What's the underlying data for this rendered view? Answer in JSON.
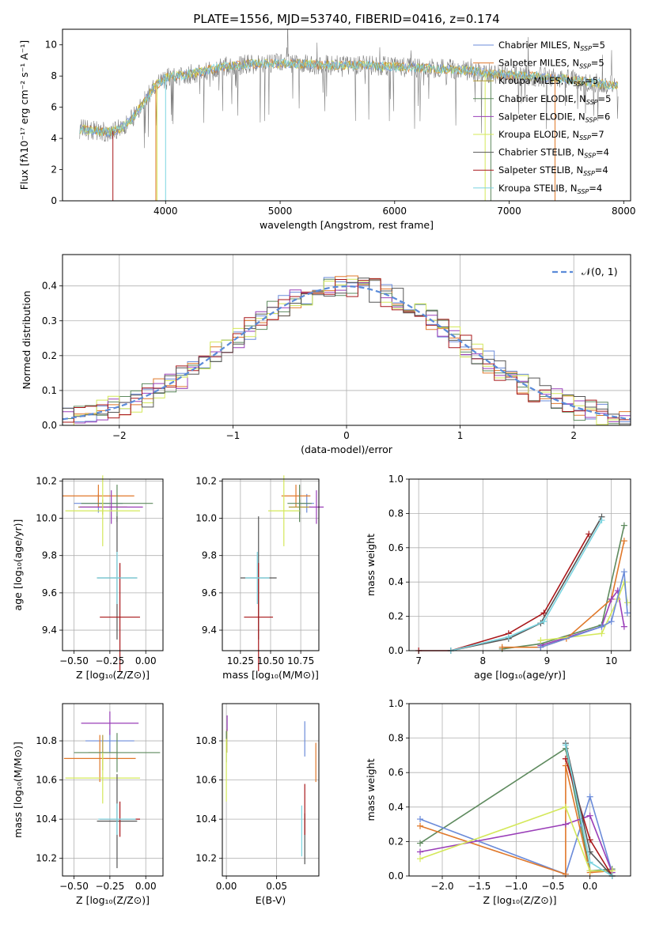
{
  "title": "PLATE=1556, MJD=53740, FIBERID=0416, z=0.174",
  "colors": [
    "#6b8bd9",
    "#e0782a",
    "#b09a3a",
    "#5e8a5e",
    "#9a3fb8",
    "#d4e85a",
    "#555555",
    "#a8171a",
    "#7ad4e0"
  ],
  "legend_items": [
    {
      "label": "Chabrier MILES, N",
      "sub": "SSP",
      "tail": "=5"
    },
    {
      "label": "Salpeter MILES, N",
      "sub": "SSP",
      "tail": "=5"
    },
    {
      "label": "Kroupa MILES, N",
      "sub": "SSP",
      "tail": "=5"
    },
    {
      "label": "Chabrier ELODIE, N",
      "sub": "SSP",
      "tail": "=5"
    },
    {
      "label": "Salpeter ELODIE, N",
      "sub": "SSP",
      "tail": "=6"
    },
    {
      "label": "Kroupa ELODIE, N",
      "sub": "SSP",
      "tail": "=7"
    },
    {
      "label": "Chabrier STELIB, N",
      "sub": "SSP",
      "tail": "=4"
    },
    {
      "label": "Salpeter STELIB, N",
      "sub": "SSP",
      "tail": "=4"
    },
    {
      "label": "Kroupa STELIB, N",
      "sub": "SSP",
      "tail": "=4"
    }
  ],
  "hist_legend": "𝒩(0, 1)",
  "chart_data": [
    {
      "type": "line",
      "name": "spectrum",
      "xlabel": "wavelength [Angstrom, rest frame]",
      "ylabel": "Flux [fλ10⁻¹⁷ erg cm⁻² s⁻¹ A⁻¹]",
      "xlim": [
        3100,
        8060
      ],
      "ylim": [
        0,
        11
      ],
      "xticks": [
        4000,
        5000,
        6000,
        7000,
        8000
      ],
      "yticks": [
        0,
        2,
        4,
        6,
        8,
        10
      ],
      "continuum": [
        [
          3250,
          4.6
        ],
        [
          3500,
          4.4
        ],
        [
          3600,
          4.6
        ],
        [
          3700,
          5.2
        ],
        [
          3800,
          6.2
        ],
        [
          3900,
          7.3
        ],
        [
          4000,
          7.9
        ],
        [
          4200,
          8.1
        ],
        [
          4500,
          8.6
        ],
        [
          4800,
          8.8
        ],
        [
          5100,
          8.8
        ],
        [
          5400,
          8.7
        ],
        [
          5700,
          8.7
        ],
        [
          6000,
          8.6
        ],
        [
          6300,
          8.5
        ],
        [
          6600,
          8.4
        ],
        [
          6900,
          8.1
        ],
        [
          7200,
          8.0
        ],
        [
          7500,
          7.8
        ],
        [
          7800,
          7.5
        ],
        [
          7950,
          7.4
        ]
      ]
    },
    {
      "type": "bar",
      "name": "residual-histogram",
      "xlabel": "(data-model)/error",
      "ylabel": "Normed distribution",
      "xlim": [
        -2.5,
        2.5
      ],
      "ylim": [
        0,
        0.49
      ],
      "xticks": [
        -2,
        -1,
        0,
        1,
        2
      ],
      "yticks": [
        0,
        0.1,
        0.2,
        0.3,
        0.4
      ],
      "gaussian": {
        "mu": 0,
        "sigma": 1
      }
    },
    {
      "type": "scatter",
      "name": "age-vs-Z",
      "xlabel": "Z [log₁₀(Z/Z⊙)]",
      "ylabel": "age  [log₁₀(age/yr)]",
      "xlim": [
        -0.58,
        0.12
      ],
      "ylim": [
        9.29,
        10.21
      ],
      "xticks": [
        -0.5,
        -0.25,
        0.0
      ],
      "xticklabels": [
        "−0.50",
        "−0.25",
        "0.00"
      ],
      "yticks": [
        9.4,
        9.6,
        9.8,
        10.0,
        10.2
      ],
      "yticklabels": [
        "9.4",
        "9.6",
        "9.8",
        "10.0",
        "10.2"
      ],
      "points": [
        {
          "x": -0.33,
          "y": 10.08,
          "xe": 0.17,
          "ye": 0.05,
          "c": 0
        },
        {
          "x": -0.33,
          "y": 10.12,
          "xe": 0.25,
          "ye": 0.06,
          "c": 1
        },
        {
          "x": -0.3,
          "y": 10.06,
          "xe": 0.17,
          "ye": 0.04,
          "c": 2
        },
        {
          "x": -0.2,
          "y": 10.08,
          "xe": 0.25,
          "ye": 0.1,
          "c": 3
        },
        {
          "x": -0.24,
          "y": 10.06,
          "xe": 0.22,
          "ye": 0.09,
          "c": 4
        },
        {
          "x": -0.3,
          "y": 10.04,
          "xe": 0.26,
          "ye": 0.19,
          "c": 5
        },
        {
          "x": -0.2,
          "y": 9.68,
          "xe": 0.14,
          "ye": 0.33,
          "c": 6
        },
        {
          "x": -0.18,
          "y": 9.47,
          "xe": 0.14,
          "ye": 0.29,
          "c": 7
        },
        {
          "x": -0.2,
          "y": 9.68,
          "xe": 0.14,
          "ye": 0.14,
          "c": 8
        },
        {
          "x": -0.2,
          "y": 10.11,
          "xe": 0.2,
          "ye": 0.03,
          "c": 9
        }
      ]
    },
    {
      "type": "scatter",
      "name": "age-vs-mass",
      "xlabel": "mass [log₁₀(M/M⊙)]",
      "ylabel": "",
      "xlim": [
        10.1,
        10.9
      ],
      "ylim": [
        9.29,
        10.21
      ],
      "xticks": [
        10.25,
        10.5,
        10.75
      ],
      "xticklabels": [
        "10.25",
        "10.50",
        "10.75"
      ],
      "yticks": [
        9.4,
        9.6,
        9.8,
        10.0,
        10.2
      ],
      "yticklabels": [
        "9.4",
        "9.6",
        "9.8",
        "10.0",
        "10.2"
      ],
      "points": [
        {
          "x": 10.8,
          "y": 10.08,
          "xe": 0.06,
          "ye": 0.05,
          "c": 0
        },
        {
          "x": 10.71,
          "y": 10.12,
          "xe": 0.12,
          "ye": 0.06,
          "c": 1
        },
        {
          "x": 10.74,
          "y": 10.06,
          "xe": 0.09,
          "ye": 0.04,
          "c": 2
        },
        {
          "x": 10.74,
          "y": 10.08,
          "xe": 0.1,
          "ye": 0.1,
          "c": 3
        },
        {
          "x": 10.88,
          "y": 10.06,
          "xe": 0.06,
          "ye": 0.09,
          "c": 4
        },
        {
          "x": 10.61,
          "y": 10.04,
          "xe": 0.13,
          "ye": 0.19,
          "c": 5
        },
        {
          "x": 10.4,
          "y": 9.68,
          "xe": 0.15,
          "ye": 0.33,
          "c": 6
        },
        {
          "x": 10.4,
          "y": 9.47,
          "xe": 0.12,
          "ye": 0.29,
          "c": 7
        },
        {
          "x": 10.39,
          "y": 9.68,
          "xe": 0.1,
          "ye": 0.14,
          "c": 8
        },
        {
          "x": 10.86,
          "y": 10.11,
          "xe": 0.04,
          "ye": 0.03,
          "c": 9
        }
      ]
    },
    {
      "type": "line",
      "name": "mass-weight-vs-age",
      "xlabel": "age  [log₁₀(age/yr)]",
      "ylabel": "mass weight",
      "xlim": [
        6.85,
        10.3
      ],
      "ylim": [
        0,
        1
      ],
      "xticks": [
        7,
        8,
        9,
        10
      ],
      "xticklabels": [
        "7",
        "8",
        "9",
        "10"
      ],
      "yticks": [
        0,
        0.2,
        0.4,
        0.6,
        0.8,
        1.0
      ],
      "yticklabels": [
        "0.0",
        "0.2",
        "0.4",
        "0.6",
        "0.8",
        "1.0"
      ],
      "series": [
        {
          "c": 7,
          "pts": [
            [
              7.0,
              0.0
            ],
            [
              7.5,
              0.0
            ],
            [
              8.4,
              0.1
            ],
            [
              8.95,
              0.22
            ],
            [
              9.65,
              0.68
            ]
          ]
        },
        {
          "c": 6,
          "pts": [
            [
              7.5,
              0.0
            ],
            [
              8.4,
              0.07
            ],
            [
              8.9,
              0.16
            ],
            [
              9.85,
              0.78
            ]
          ]
        },
        {
          "c": 8,
          "pts": [
            [
              7.5,
              0.0
            ],
            [
              8.4,
              0.08
            ],
            [
              8.95,
              0.17
            ],
            [
              9.85,
              0.76
            ]
          ]
        },
        {
          "c": 3,
          "pts": [
            [
              8.3,
              0.01
            ],
            [
              8.9,
              0.04
            ],
            [
              9.85,
              0.15
            ],
            [
              10.2,
              0.73
            ]
          ]
        },
        {
          "c": 1,
          "pts": [
            [
              8.3,
              0.02
            ],
            [
              8.9,
              0.02
            ],
            [
              9.3,
              0.07
            ],
            [
              10.0,
              0.3
            ],
            [
              10.2,
              0.64
            ]
          ]
        },
        {
          "c": 4,
          "pts": [
            [
              8.9,
              0.03
            ],
            [
              9.85,
              0.14
            ],
            [
              10.0,
              0.3
            ],
            [
              10.1,
              0.35
            ],
            [
              10.2,
              0.14
            ]
          ]
        },
        {
          "c": 9,
          "pts": [
            [
              8.9,
              0.04
            ],
            [
              9.85,
              0.2
            ],
            [
              10.1,
              0.37
            ],
            [
              10.2,
              0.53
            ],
            [
              10.25,
              0.04
            ]
          ]
        },
        {
          "c": 5,
          "pts": [
            [
              8.9,
              0.06
            ],
            [
              9.85,
              0.1
            ],
            [
              10.1,
              0.3
            ],
            [
              10.2,
              0.4
            ],
            [
              10.25,
              0.28
            ]
          ]
        },
        {
          "c": 0,
          "pts": [
            [
              8.9,
              0.02
            ],
            [
              9.85,
              0.14
            ],
            [
              10.0,
              0.17
            ],
            [
              10.2,
              0.46
            ],
            [
              10.25,
              0.22
            ]
          ]
        }
      ]
    },
    {
      "type": "scatter",
      "name": "mass-vs-Z",
      "xlabel": "Z [log₁₀(Z/Z⊙)]",
      "ylabel": "mass [log₁₀(M/M⊙)]",
      "xlim": [
        -0.58,
        0.12
      ],
      "ylim": [
        10.11,
        10.99
      ],
      "xticks": [
        -0.5,
        -0.25,
        0.0
      ],
      "xticklabels": [
        "−0.50",
        "−0.25",
        "0.00"
      ],
      "yticks": [
        10.2,
        10.4,
        10.6,
        10.8
      ],
      "yticklabels": [
        "10.2",
        "10.4",
        "10.6",
        "10.8"
      ],
      "points": [
        {
          "x": -0.25,
          "y": 10.8,
          "xe": 0.17,
          "ye": 0.06,
          "c": 0
        },
        {
          "x": -0.32,
          "y": 10.71,
          "xe": 0.25,
          "ye": 0.12,
          "c": 1
        },
        {
          "x": -0.3,
          "y": 10.74,
          "xe": 0.1,
          "ye": 0.09,
          "c": 2
        },
        {
          "x": -0.2,
          "y": 10.74,
          "xe": 0.3,
          "ye": 0.1,
          "c": 3
        },
        {
          "x": -0.25,
          "y": 10.89,
          "xe": 0.2,
          "ye": 0.06,
          "c": 4
        },
        {
          "x": -0.3,
          "y": 10.61,
          "xe": 0.26,
          "ye": 0.13,
          "c": 5
        },
        {
          "x": -0.2,
          "y": 10.39,
          "xe": 0.14,
          "ye": 0.24,
          "c": 6
        },
        {
          "x": -0.18,
          "y": 10.4,
          "xe": 0.14,
          "ye": 0.09,
          "c": 7
        },
        {
          "x": -0.2,
          "y": 10.4,
          "xe": 0.13,
          "ye": 0.08,
          "c": 8
        },
        {
          "x": -0.2,
          "y": 10.89,
          "xe": 0.15,
          "ye": 0.06,
          "c": 9
        }
      ]
    },
    {
      "type": "scatter",
      "name": "mass-vs-EBV",
      "xlabel": "E(B-V)",
      "ylabel": "",
      "xlim": [
        -0.004,
        0.092
      ],
      "ylim": [
        10.11,
        10.99
      ],
      "xticks": [
        0.0,
        0.05
      ],
      "xticklabels": [
        "0.00",
        "0.05"
      ],
      "yticks": [
        10.2,
        10.4,
        10.6,
        10.8
      ],
      "yticklabels": [
        "10.2",
        "10.4",
        "10.6",
        "10.8"
      ],
      "points": [
        {
          "x": 0.078,
          "y": 10.81,
          "ye": 0.09,
          "c": 0
        },
        {
          "x": 0.089,
          "y": 10.69,
          "ye": 0.1,
          "c": 1
        },
        {
          "x": 0.0005,
          "y": 10.8,
          "ye": 0.06,
          "c": 2
        },
        {
          "x": 0.0,
          "y": 10.77,
          "ye": 0.08,
          "c": 3
        },
        {
          "x": 0.0008,
          "y": 10.89,
          "ye": 0.04,
          "c": 4
        },
        {
          "x": 0.0,
          "y": 10.65,
          "ye": 0.16,
          "c": 5
        },
        {
          "x": 0.078,
          "y": 10.3,
          "ye": 0.13,
          "c": 6
        },
        {
          "x": 0.078,
          "y": 10.45,
          "ye": 0.13,
          "c": 7
        },
        {
          "x": 0.075,
          "y": 10.34,
          "ye": 0.13,
          "c": 8
        },
        {
          "x": 0.075,
          "y": 10.85,
          "ye": 0.1,
          "c": 9
        }
      ]
    },
    {
      "type": "line",
      "name": "mass-weight-vs-Z",
      "xlabel": "Z [log₁₀(Z/Z⊙)]",
      "ylabel": "mass weight",
      "xlim": [
        -2.45,
        0.55
      ],
      "ylim": [
        0,
        1
      ],
      "xticks": [
        -2.0,
        -1.5,
        -1.0,
        -0.5,
        0.0
      ],
      "xticklabels": [
        "−2.0",
        "−1.5",
        "−1.0",
        "−0.5",
        "0.0"
      ],
      "yticks": [
        0,
        0.2,
        0.4,
        0.6,
        0.8,
        1.0
      ],
      "yticklabels": [
        "0.0",
        "0.2",
        "0.4",
        "0.6",
        "0.8",
        "1.0"
      ],
      "series": [
        {
          "c": 3,
          "pts": [
            [
              -2.3,
              0.19
            ],
            [
              -0.33,
              0.74
            ],
            [
              0.0,
              0.03
            ],
            [
              0.3,
              0.04
            ]
          ]
        },
        {
          "c": 9,
          "pts": [
            [
              -2.3,
              0.38
            ],
            [
              -0.33,
              0.01
            ],
            [
              0.0,
              0.53
            ],
            [
              0.3,
              0.03
            ]
          ]
        },
        {
          "c": 0,
          "pts": [
            [
              -2.3,
              0.33
            ],
            [
              -0.33,
              0.01
            ],
            [
              0.0,
              0.46
            ],
            [
              0.3,
              0.02
            ]
          ]
        },
        {
          "c": 1,
          "pts": [
            [
              -2.3,
              0.29
            ],
            [
              -0.33,
              0.01
            ],
            [
              -0.33,
              0.64
            ],
            [
              0.0,
              0.02
            ],
            [
              0.3,
              0.03
            ]
          ]
        },
        {
          "c": 4,
          "pts": [
            [
              -2.3,
              0.14
            ],
            [
              -0.33,
              0.3
            ],
            [
              0.0,
              0.35
            ],
            [
              0.3,
              0.02
            ]
          ]
        },
        {
          "c": 5,
          "pts": [
            [
              -2.3,
              0.1
            ],
            [
              -0.33,
              0.4
            ],
            [
              0.0,
              0.03
            ],
            [
              0.3,
              0.03
            ]
          ]
        },
        {
          "c": 7,
          "pts": [
            [
              -0.33,
              0.68
            ],
            [
              0.0,
              0.21
            ],
            [
              0.3,
              0.0
            ]
          ]
        },
        {
          "c": 6,
          "pts": [
            [
              -0.33,
              0.77
            ],
            [
              0.0,
              0.14
            ],
            [
              0.3,
              0.0
            ]
          ]
        },
        {
          "c": 8,
          "pts": [
            [
              -0.33,
              0.76
            ],
            [
              0.0,
              0.08
            ],
            [
              0.3,
              0.0
            ]
          ]
        }
      ]
    }
  ]
}
